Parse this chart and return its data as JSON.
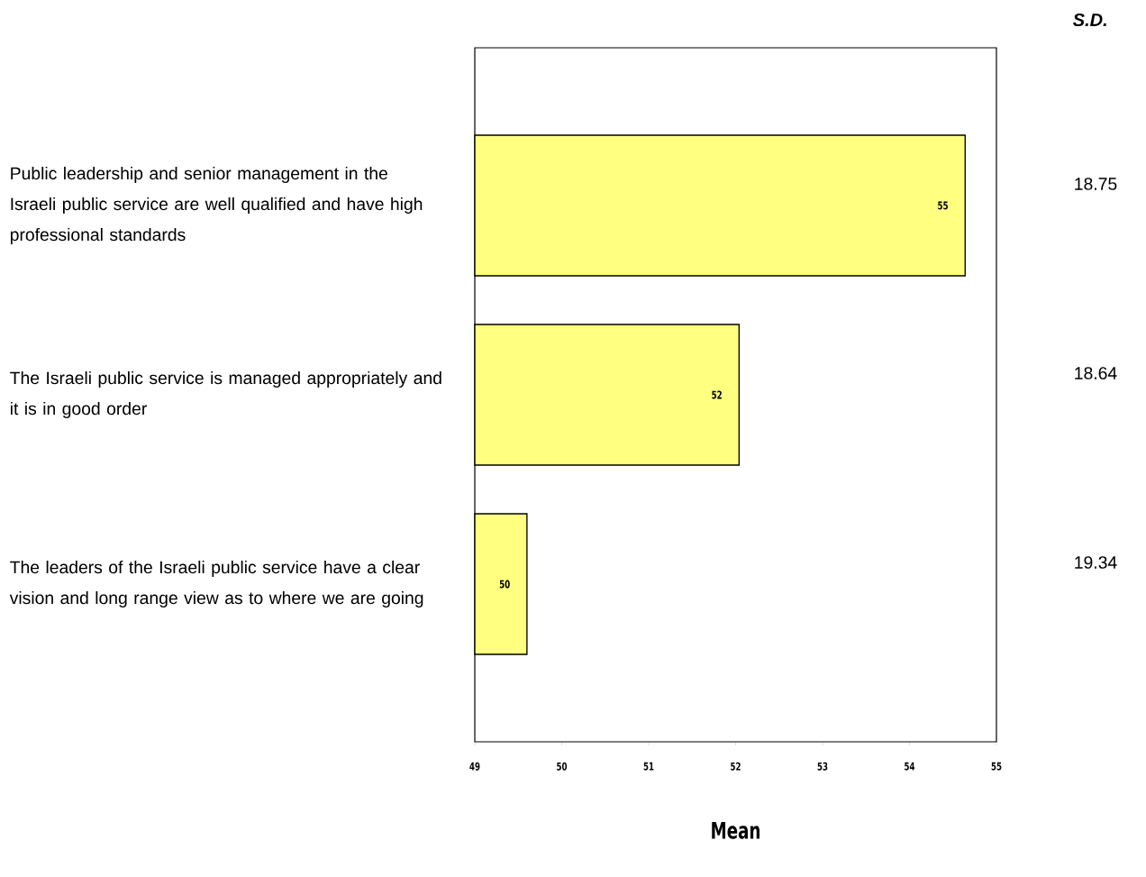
{
  "chart_data": {
    "type": "bar",
    "orientation": "horizontal",
    "xlabel": "Mean",
    "categories": [
      "Public leadership and senior management in the Israeli public service are well qualified and have high professional standards",
      "The Israeli public service is managed appropriately and it is in good order",
      "The leaders of the Israeli public service have a clear vision and long range view as to where we are going"
    ],
    "values": [
      54.64,
      52.04,
      49.6
    ],
    "value_labels": [
      "55",
      "52",
      "50"
    ],
    "color": "#ffff80",
    "xlim": [
      49,
      55
    ],
    "xticks": [
      49,
      50,
      51,
      52,
      53,
      54,
      55
    ],
    "grid": false,
    "annotations": [
      "S.D.",
      "18.75",
      "18.64",
      "19.34"
    ]
  }
}
